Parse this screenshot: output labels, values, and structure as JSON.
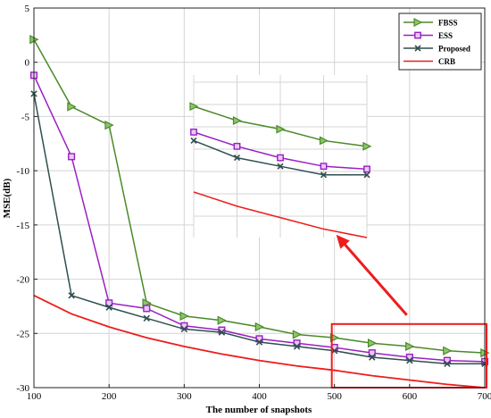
{
  "chart_data": {
    "type": "line",
    "xlabel": "The number of snapshots",
    "ylabel": "MSE(dB)",
    "x": [
      100,
      150,
      200,
      250,
      300,
      350,
      400,
      450,
      500,
      550,
      600,
      650,
      700
    ],
    "xlim": [
      100,
      700
    ],
    "ylim": [
      -30,
      5
    ],
    "x_ticks": [
      100,
      200,
      300,
      400,
      500,
      600,
      700
    ],
    "y_ticks": [
      5,
      0,
      -5,
      -10,
      -15,
      -20,
      -25,
      -30
    ],
    "grid": true,
    "legend_position": "top-right",
    "series": [
      {
        "name": "FBSS",
        "color": "#4a8a2a",
        "marker": "triangle-right",
        "values": [
          2.1,
          -4.1,
          -5.8,
          -22.2,
          -23.4,
          -23.8,
          -24.4,
          -25.1,
          -25.4,
          -25.9,
          -26.2,
          -26.6,
          -26.8
        ]
      },
      {
        "name": "ESS",
        "color": "#9a1fc4",
        "marker": "square",
        "values": [
          -1.2,
          -8.7,
          -22.2,
          -22.7,
          -24.3,
          -24.7,
          -25.5,
          -25.9,
          -26.3,
          -26.8,
          -27.2,
          -27.5,
          -27.6
        ]
      },
      {
        "name": "Proposed",
        "color": "#2f4f4f",
        "marker": "x",
        "values": [
          -2.9,
          -21.5,
          -22.6,
          -23.6,
          -24.6,
          -24.9,
          -25.8,
          -26.2,
          -26.6,
          -27.2,
          -27.5,
          -27.8,
          -27.8
        ]
      },
      {
        "name": "CRB",
        "color": "#ee1c1c",
        "marker": "none",
        "values": [
          -21.5,
          -23.2,
          -24.4,
          -25.4,
          -26.2,
          -26.9,
          -27.5,
          -28.0,
          -28.4,
          -28.9,
          -29.3,
          -29.7,
          -30.0
        ]
      }
    ],
    "annotation": {
      "highlight_x_range": [
        500,
        700
      ],
      "highlight_y_range": [
        -30,
        -24.3
      ],
      "highlight_color": "#ee1c1c",
      "arrow_color": "#ee1c1c"
    }
  }
}
